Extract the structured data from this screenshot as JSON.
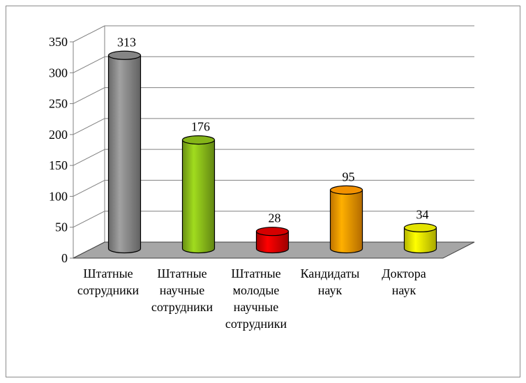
{
  "chart_data": {
    "type": "bar",
    "style": "3d-cylinder",
    "categories": [
      [
        "Штатные",
        "сотрудники"
      ],
      [
        "Штатные",
        "научные",
        "сотрудники"
      ],
      [
        "Штатные",
        "молодые",
        "научные",
        "сотрудники"
      ],
      [
        "Кандидаты",
        "наук"
      ],
      [
        "Доктора",
        "наук"
      ]
    ],
    "values": [
      313,
      176,
      28,
      95,
      34
    ],
    "data_labels": [
      "313",
      "176",
      "28",
      "95",
      "34"
    ],
    "colors": [
      "#8c8c8c",
      "#8cbf1a",
      "#e00000",
      "#ff9900",
      "#f0f000"
    ],
    "y_ticks": [
      "0",
      "50",
      "100",
      "150",
      "200",
      "250",
      "300",
      "350"
    ],
    "ylim": [
      0,
      350
    ],
    "grid": true,
    "legend": "none",
    "floor_color": "#a6a6a6"
  }
}
